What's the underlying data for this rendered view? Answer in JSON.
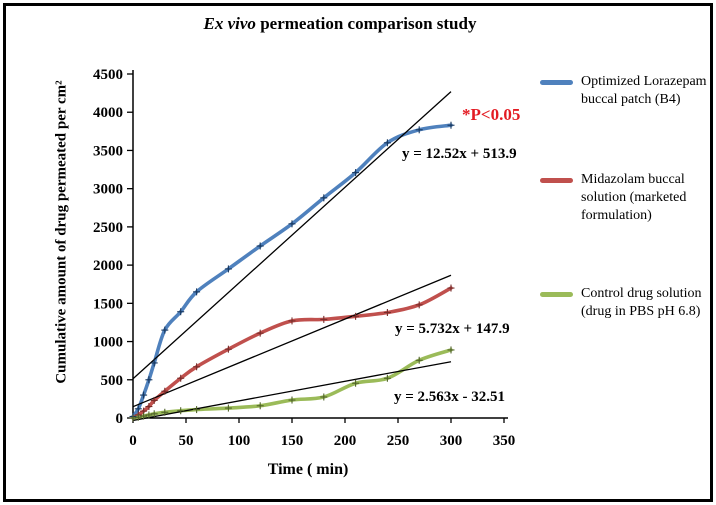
{
  "title": {
    "italic": "Ex vivo",
    "rest": " permeation comparison study"
  },
  "annotation": {
    "text": "*P<0.05",
    "color": "#e31b23"
  },
  "chart_data": {
    "type": "line",
    "title": "Ex vivo permeation comparison study",
    "xlabel": "Time ( min)",
    "ylabel": "Cumulative amount of drug permeated per cm²",
    "xlim": [
      0,
      350
    ],
    "ylim": [
      0,
      4500
    ],
    "x_ticks": [
      0,
      50,
      100,
      150,
      200,
      250,
      300,
      350
    ],
    "y_ticks": [
      0,
      500,
      1000,
      1500,
      2000,
      2500,
      3000,
      3500,
      4000,
      4500
    ],
    "grid": false,
    "legend_position": "right",
    "marker": "plus",
    "x": [
      0,
      5,
      10,
      15,
      20,
      30,
      45,
      60,
      90,
      120,
      150,
      180,
      210,
      240,
      270,
      300
    ],
    "series": [
      {
        "name": "Optimized Lorazepam buccal patch (B4)",
        "color": "#4f81bd",
        "marker_color": "#17375e",
        "values": [
          20,
          120,
          300,
          500,
          720,
          1150,
          1390,
          1650,
          1950,
          2250,
          2540,
          2880,
          3210,
          3600,
          3770,
          3830
        ]
      },
      {
        "name": "Midazolam buccal solution (marketed formulation)",
        "color": "#c0504d",
        "marker_color": "#772c2a",
        "values": [
          0,
          40,
          90,
          150,
          230,
          350,
          520,
          670,
          900,
          1110,
          1270,
          1290,
          1330,
          1380,
          1480,
          1700
        ]
      },
      {
        "name": "Control drug solution (drug in PBS pH 6.8)",
        "color": "#9bbb59",
        "marker_color": "#4f6228",
        "values": [
          0,
          10,
          25,
          40,
          55,
          75,
          95,
          110,
          130,
          160,
          235,
          275,
          455,
          520,
          755,
          890
        ]
      }
    ],
    "trendlines": [
      {
        "equation": "y = 12.52x + 513.9",
        "slope": 12.52,
        "intercept": 513.9,
        "x_range": [
          0,
          300
        ],
        "color": "#000000"
      },
      {
        "equation": "y = 5.732x + 147.9",
        "slope": 5.732,
        "intercept": 147.9,
        "x_range": [
          0,
          300
        ],
        "color": "#000000"
      },
      {
        "equation": "y = 2.563x - 32.51",
        "slope": 2.563,
        "intercept": -32.51,
        "x_range": [
          0,
          300
        ],
        "color": "#000000"
      }
    ]
  },
  "legend": {
    "items": [
      {
        "lines": [
          "Optimized Lorazepam",
          "buccal patch (B4)"
        ],
        "color": "#4f81bd"
      },
      {
        "lines": [
          "Midazolam buccal",
          "solution (marketed",
          "formulation)"
        ],
        "color": "#c0504d"
      },
      {
        "lines": [
          "Control drug solution",
          "(drug in PBS pH 6.8)"
        ],
        "color": "#9bbb59"
      }
    ]
  }
}
